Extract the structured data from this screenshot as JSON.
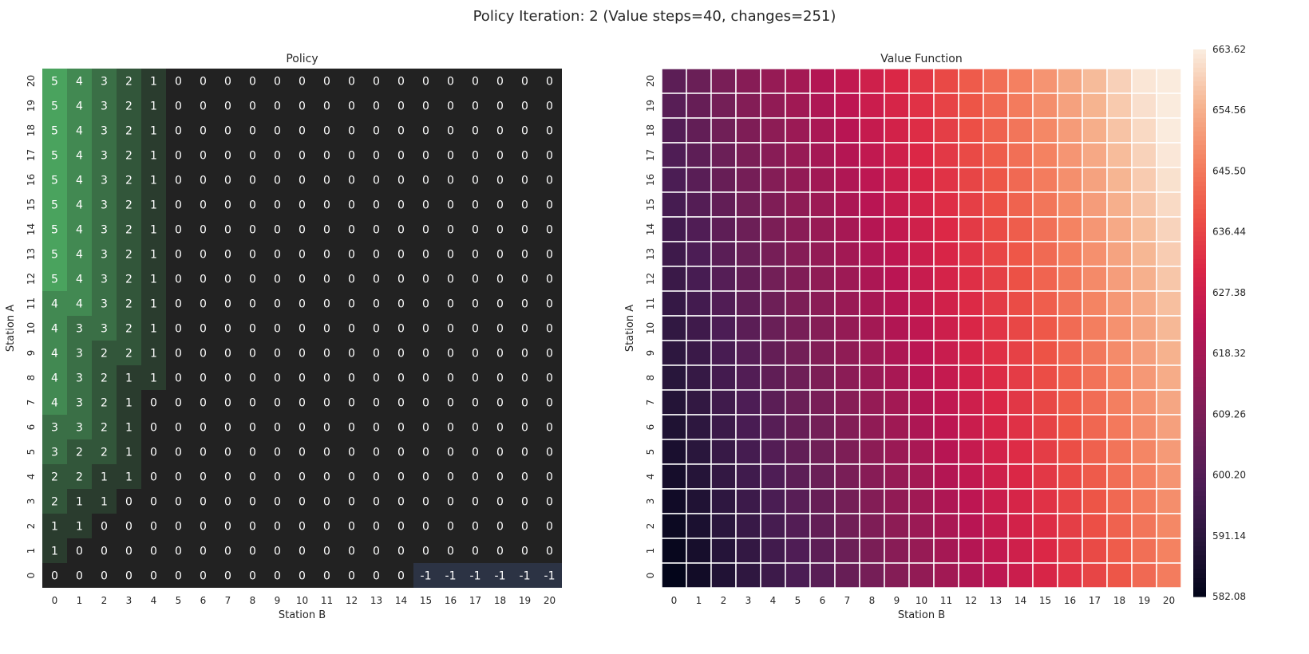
{
  "figure_title": "Policy Iteration: 2 (Value steps=40, changes=251)",
  "colors": {
    "policy_zero": "#222222",
    "policy_positive_max": "#4aa35e",
    "policy_negative": "#2c3344",
    "value_colormap": "rocket",
    "grid_line": "#ffffff",
    "annotation_text": "#ffffff"
  },
  "chart_data": [
    {
      "type": "heatmap",
      "title": "Policy",
      "xlabel": "Station B",
      "ylabel": "Station A",
      "x": [
        0,
        1,
        2,
        3,
        4,
        5,
        6,
        7,
        8,
        9,
        10,
        11,
        12,
        13,
        14,
        15,
        16,
        17,
        18,
        19,
        20
      ],
      "y": [
        0,
        1,
        2,
        3,
        4,
        5,
        6,
        7,
        8,
        9,
        10,
        11,
        12,
        13,
        14,
        15,
        16,
        17,
        18,
        19,
        20
      ],
      "y_order": "top-to-bottom descending (20 at top, 0 at bottom)",
      "annotated": true,
      "colorbar": false,
      "rows_from_A20_to_A0": [
        [
          5,
          4,
          3,
          2,
          1,
          0,
          0,
          0,
          0,
          0,
          0,
          0,
          0,
          0,
          0,
          0,
          0,
          0,
          0,
          0,
          0
        ],
        [
          5,
          4,
          3,
          2,
          1,
          0,
          0,
          0,
          0,
          0,
          0,
          0,
          0,
          0,
          0,
          0,
          0,
          0,
          0,
          0,
          0
        ],
        [
          5,
          4,
          3,
          2,
          1,
          0,
          0,
          0,
          0,
          0,
          0,
          0,
          0,
          0,
          0,
          0,
          0,
          0,
          0,
          0,
          0
        ],
        [
          5,
          4,
          3,
          2,
          1,
          0,
          0,
          0,
          0,
          0,
          0,
          0,
          0,
          0,
          0,
          0,
          0,
          0,
          0,
          0,
          0
        ],
        [
          5,
          4,
          3,
          2,
          1,
          0,
          0,
          0,
          0,
          0,
          0,
          0,
          0,
          0,
          0,
          0,
          0,
          0,
          0,
          0,
          0
        ],
        [
          5,
          4,
          3,
          2,
          1,
          0,
          0,
          0,
          0,
          0,
          0,
          0,
          0,
          0,
          0,
          0,
          0,
          0,
          0,
          0,
          0
        ],
        [
          5,
          4,
          3,
          2,
          1,
          0,
          0,
          0,
          0,
          0,
          0,
          0,
          0,
          0,
          0,
          0,
          0,
          0,
          0,
          0,
          0
        ],
        [
          5,
          4,
          3,
          2,
          1,
          0,
          0,
          0,
          0,
          0,
          0,
          0,
          0,
          0,
          0,
          0,
          0,
          0,
          0,
          0,
          0
        ],
        [
          5,
          4,
          3,
          2,
          1,
          0,
          0,
          0,
          0,
          0,
          0,
          0,
          0,
          0,
          0,
          0,
          0,
          0,
          0,
          0,
          0
        ],
        [
          4,
          4,
          3,
          2,
          1,
          0,
          0,
          0,
          0,
          0,
          0,
          0,
          0,
          0,
          0,
          0,
          0,
          0,
          0,
          0,
          0
        ],
        [
          4,
          3,
          3,
          2,
          1,
          0,
          0,
          0,
          0,
          0,
          0,
          0,
          0,
          0,
          0,
          0,
          0,
          0,
          0,
          0,
          0
        ],
        [
          4,
          3,
          2,
          2,
          1,
          0,
          0,
          0,
          0,
          0,
          0,
          0,
          0,
          0,
          0,
          0,
          0,
          0,
          0,
          0,
          0
        ],
        [
          4,
          3,
          2,
          1,
          1,
          0,
          0,
          0,
          0,
          0,
          0,
          0,
          0,
          0,
          0,
          0,
          0,
          0,
          0,
          0,
          0
        ],
        [
          4,
          3,
          2,
          1,
          0,
          0,
          0,
          0,
          0,
          0,
          0,
          0,
          0,
          0,
          0,
          0,
          0,
          0,
          0,
          0,
          0
        ],
        [
          3,
          3,
          2,
          1,
          0,
          0,
          0,
          0,
          0,
          0,
          0,
          0,
          0,
          0,
          0,
          0,
          0,
          0,
          0,
          0,
          0
        ],
        [
          3,
          2,
          2,
          1,
          0,
          0,
          0,
          0,
          0,
          0,
          0,
          0,
          0,
          0,
          0,
          0,
          0,
          0,
          0,
          0,
          0
        ],
        [
          2,
          2,
          1,
          1,
          0,
          0,
          0,
          0,
          0,
          0,
          0,
          0,
          0,
          0,
          0,
          0,
          0,
          0,
          0,
          0,
          0
        ],
        [
          2,
          1,
          1,
          0,
          0,
          0,
          0,
          0,
          0,
          0,
          0,
          0,
          0,
          0,
          0,
          0,
          0,
          0,
          0,
          0,
          0
        ],
        [
          1,
          1,
          0,
          0,
          0,
          0,
          0,
          0,
          0,
          0,
          0,
          0,
          0,
          0,
          0,
          0,
          0,
          0,
          0,
          0,
          0
        ],
        [
          1,
          0,
          0,
          0,
          0,
          0,
          0,
          0,
          0,
          0,
          0,
          0,
          0,
          0,
          0,
          0,
          0,
          0,
          0,
          0,
          0
        ],
        [
          0,
          0,
          0,
          0,
          0,
          0,
          0,
          0,
          0,
          0,
          0,
          0,
          0,
          0,
          0,
          -1,
          -1,
          -1,
          -1,
          -1,
          -1
        ]
      ]
    },
    {
      "type": "heatmap",
      "title": "Value Function",
      "xlabel": "Station B",
      "ylabel": "Station A",
      "x": [
        0,
        1,
        2,
        3,
        4,
        5,
        6,
        7,
        8,
        9,
        10,
        11,
        12,
        13,
        14,
        15,
        16,
        17,
        18,
        19,
        20
      ],
      "y": [
        0,
        1,
        2,
        3,
        4,
        5,
        6,
        7,
        8,
        9,
        10,
        11,
        12,
        13,
        14,
        15,
        16,
        17,
        18,
        19,
        20
      ],
      "y_order": "top-to-bottom descending (20 at top, 0 at bottom)",
      "annotated": false,
      "colorbar": true,
      "vmin": 582.08,
      "vmax": 663.62,
      "colorbar_ticks": [
        "663.62",
        "654.56",
        "645.50",
        "636.44",
        "627.38",
        "618.32",
        "609.26",
        "600.20",
        "591.14",
        "582.08"
      ],
      "value_estimate": "approx. 582.08 at (A=0,B=0) rising to approx. 663.6 at (A=20,B=20); increases with B (stronger) and with A",
      "value_model": {
        "base": 582.08,
        "slope_B": 3.2,
        "slope_A": 1.0,
        "max": 663.62
      }
    }
  ]
}
